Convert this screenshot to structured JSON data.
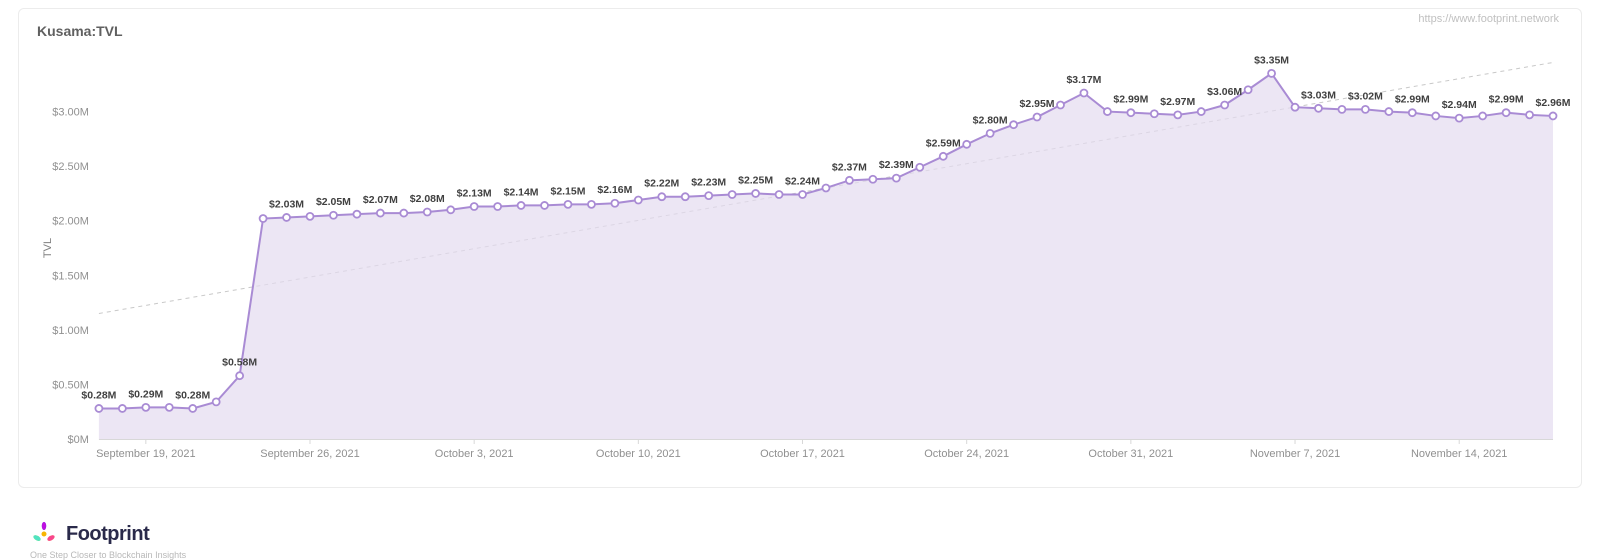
{
  "title": "Kusama:TVL",
  "attribution": "https://www.footprint.network",
  "logo": {
    "text": "Footprint",
    "tagline": "One Step Closer to Blockchain Insights"
  },
  "chart": {
    "type": "area",
    "y_axis": {
      "label": "TVL",
      "ticks": [
        "$0M",
        "$0.50M",
        "$1.00M",
        "$1.50M",
        "$2.00M",
        "$2.50M",
        "$3.00M"
      ],
      "tick_values": [
        0,
        0.5,
        1.0,
        1.5,
        2.0,
        2.5,
        3.0
      ],
      "ylim": [
        0,
        3.5
      ],
      "label_fontsize": 11,
      "tick_fontsize": 11,
      "tick_color": "#909090"
    },
    "x_axis": {
      "ticks": [
        {
          "label": "September 19, 2021",
          "pos": 2
        },
        {
          "label": "September 26, 2021",
          "pos": 9
        },
        {
          "label": "October 3, 2021",
          "pos": 16
        },
        {
          "label": "October 10, 2021",
          "pos": 23
        },
        {
          "label": "October 17, 2021",
          "pos": 30
        },
        {
          "label": "October 24, 2021",
          "pos": 37
        },
        {
          "label": "October 31, 2021",
          "pos": 44
        },
        {
          "label": "November 7, 2021",
          "pos": 51
        },
        {
          "label": "November 14, 2021",
          "pos": 58
        }
      ],
      "tick_fontsize": 11,
      "tick_color": "#909090"
    },
    "series": {
      "line_color": "#a98bd4",
      "area_color": "#e4dbf0",
      "area_opacity": 0.7,
      "line_width": 2,
      "marker_size": 3.5,
      "marker_fill": "#ffffff",
      "marker_stroke": "#a98bd4",
      "marker_stroke_width": 1.8,
      "points_per_label": 1,
      "data": [
        {
          "i": 0,
          "v": 0.28,
          "label": "$0.28M",
          "show_label": true
        },
        {
          "i": 1,
          "v": 0.28,
          "label": "",
          "show_label": false
        },
        {
          "i": 2,
          "v": 0.29,
          "label": "$0.29M",
          "show_label": true
        },
        {
          "i": 3,
          "v": 0.29,
          "label": "",
          "show_label": false
        },
        {
          "i": 4,
          "v": 0.28,
          "label": "$0.28M",
          "show_label": true
        },
        {
          "i": 5,
          "v": 0.34,
          "label": "",
          "show_label": false
        },
        {
          "i": 6,
          "v": 0.58,
          "label": "$0.58M",
          "show_label": true
        },
        {
          "i": 7,
          "v": 2.02,
          "label": "",
          "show_label": false
        },
        {
          "i": 8,
          "v": 2.03,
          "label": "$2.03M",
          "show_label": true
        },
        {
          "i": 9,
          "v": 2.04,
          "label": "",
          "show_label": false
        },
        {
          "i": 10,
          "v": 2.05,
          "label": "$2.05M",
          "show_label": true
        },
        {
          "i": 11,
          "v": 2.06,
          "label": "",
          "show_label": false
        },
        {
          "i": 12,
          "v": 2.07,
          "label": "$2.07M",
          "show_label": true
        },
        {
          "i": 13,
          "v": 2.07,
          "label": "",
          "show_label": false
        },
        {
          "i": 14,
          "v": 2.08,
          "label": "$2.08M",
          "show_label": true
        },
        {
          "i": 15,
          "v": 2.1,
          "label": "",
          "show_label": false
        },
        {
          "i": 16,
          "v": 2.13,
          "label": "$2.13M",
          "show_label": true
        },
        {
          "i": 17,
          "v": 2.13,
          "label": "",
          "show_label": false
        },
        {
          "i": 18,
          "v": 2.14,
          "label": "$2.14M",
          "show_label": true
        },
        {
          "i": 19,
          "v": 2.14,
          "label": "",
          "show_label": false
        },
        {
          "i": 20,
          "v": 2.15,
          "label": "$2.15M",
          "show_label": true
        },
        {
          "i": 21,
          "v": 2.15,
          "label": "",
          "show_label": false
        },
        {
          "i": 22,
          "v": 2.16,
          "label": "$2.16M",
          "show_label": true
        },
        {
          "i": 23,
          "v": 2.19,
          "label": "",
          "show_label": false
        },
        {
          "i": 24,
          "v": 2.22,
          "label": "$2.22M",
          "show_label": true
        },
        {
          "i": 25,
          "v": 2.22,
          "label": "",
          "show_label": false
        },
        {
          "i": 26,
          "v": 2.23,
          "label": "$2.23M",
          "show_label": true
        },
        {
          "i": 27,
          "v": 2.24,
          "label": "",
          "show_label": false
        },
        {
          "i": 28,
          "v": 2.25,
          "label": "$2.25M",
          "show_label": true
        },
        {
          "i": 29,
          "v": 2.24,
          "label": "",
          "show_label": false
        },
        {
          "i": 30,
          "v": 2.24,
          "label": "$2.24M",
          "show_label": true
        },
        {
          "i": 31,
          "v": 2.3,
          "label": "",
          "show_label": false
        },
        {
          "i": 32,
          "v": 2.37,
          "label": "$2.37M",
          "show_label": true
        },
        {
          "i": 33,
          "v": 2.38,
          "label": "",
          "show_label": false
        },
        {
          "i": 34,
          "v": 2.39,
          "label": "$2.39M",
          "show_label": true
        },
        {
          "i": 35,
          "v": 2.49,
          "label": "",
          "show_label": false
        },
        {
          "i": 36,
          "v": 2.59,
          "label": "$2.59M",
          "show_label": true
        },
        {
          "i": 37,
          "v": 2.7,
          "label": "",
          "show_label": false
        },
        {
          "i": 38,
          "v": 2.8,
          "label": "$2.80M",
          "show_label": true
        },
        {
          "i": 39,
          "v": 2.88,
          "label": "",
          "show_label": false
        },
        {
          "i": 40,
          "v": 2.95,
          "label": "$2.95M",
          "show_label": true
        },
        {
          "i": 41,
          "v": 3.06,
          "label": "",
          "show_label": false
        },
        {
          "i": 42,
          "v": 3.17,
          "label": "$3.17M",
          "show_label": true
        },
        {
          "i": 43,
          "v": 3.0,
          "label": "",
          "show_label": false
        },
        {
          "i": 44,
          "v": 2.99,
          "label": "$2.99M",
          "show_label": true
        },
        {
          "i": 45,
          "v": 2.98,
          "label": "",
          "show_label": false
        },
        {
          "i": 46,
          "v": 2.97,
          "label": "$2.97M",
          "show_label": true
        },
        {
          "i": 47,
          "v": 3.0,
          "label": "",
          "show_label": false
        },
        {
          "i": 48,
          "v": 3.06,
          "label": "$3.06M",
          "show_label": true
        },
        {
          "i": 49,
          "v": 3.2,
          "label": "",
          "show_label": false
        },
        {
          "i": 50,
          "v": 3.35,
          "label": "$3.35M",
          "show_label": true
        },
        {
          "i": 51,
          "v": 3.04,
          "label": "",
          "show_label": false
        },
        {
          "i": 52,
          "v": 3.03,
          "label": "$3.03M",
          "show_label": true
        },
        {
          "i": 53,
          "v": 3.02,
          "label": "",
          "show_label": false
        },
        {
          "i": 54,
          "v": 3.02,
          "label": "$3.02M",
          "show_label": true
        },
        {
          "i": 55,
          "v": 3.0,
          "label": "",
          "show_label": false
        },
        {
          "i": 56,
          "v": 2.99,
          "label": "$2.99M",
          "show_label": true
        },
        {
          "i": 57,
          "v": 2.96,
          "label": "",
          "show_label": false
        },
        {
          "i": 58,
          "v": 2.94,
          "label": "$2.94M",
          "show_label": true
        },
        {
          "i": 59,
          "v": 2.96,
          "label": "",
          "show_label": false
        },
        {
          "i": 60,
          "v": 2.99,
          "label": "$2.99M",
          "show_label": true
        },
        {
          "i": 61,
          "v": 2.97,
          "label": "",
          "show_label": false
        },
        {
          "i": 62,
          "v": 2.96,
          "label": "$2.96M",
          "show_label": true
        }
      ]
    },
    "trend_line": {
      "color": "#c8c8c8",
      "width": 1,
      "dash": "4 4",
      "start_v": 1.15,
      "end_v": 3.45
    },
    "background_color": "#ffffff",
    "border_color": "#ececec"
  }
}
